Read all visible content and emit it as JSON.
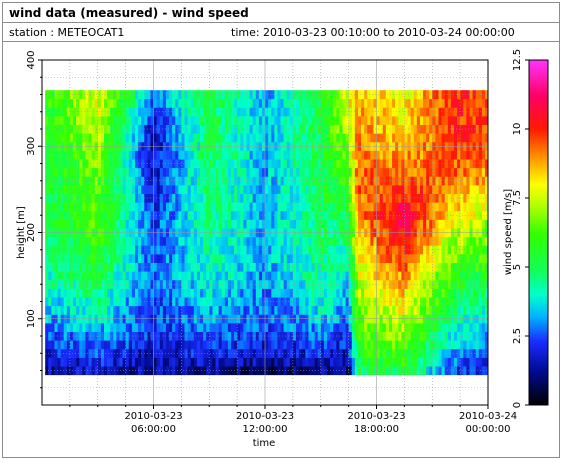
{
  "header": {
    "title": "wind data (measured) - wind speed",
    "station": "station : METEOCAT1",
    "time": "time: 2010-03-23 00:10:00 to 2010-03-24 00:00:00"
  },
  "colors": {
    "frame": "#8c8c8c",
    "grid": "#9c9c9c",
    "missing": "#ffffff"
  },
  "chart_data": {
    "type": "heatmap",
    "title": "wind data (measured) - wind speed",
    "xlabel": "time",
    "ylabel": "height [m]",
    "colorbar_label": "wind speed [m/s]",
    "x_range_hours": [
      0.17,
      24
    ],
    "ylim": [
      0,
      400
    ],
    "clim": [
      0,
      12.5
    ],
    "x_ticks": [
      {
        "hour": 6,
        "line1": "2010-03-23",
        "line2": "06:00:00"
      },
      {
        "hour": 12,
        "line1": "2010-03-23",
        "line2": "12:00:00"
      },
      {
        "hour": 18,
        "line1": "2010-03-23",
        "line2": "18:00:00"
      },
      {
        "hour": 24,
        "line1": "2010-03-24",
        "line2": "00:00:00"
      }
    ],
    "y_ticks": [
      100,
      200,
      300,
      400
    ],
    "cbar_ticks": [
      "0",
      "2.5",
      "5",
      "7.5",
      "10",
      "12.5"
    ],
    "grid": true,
    "height_levels_m": [
      40,
      50,
      60,
      70,
      80,
      90,
      100,
      110,
      120,
      130,
      140,
      150,
      160,
      170,
      180,
      190,
      200,
      210,
      220,
      230,
      240,
      250,
      260,
      270,
      280,
      290,
      300,
      310,
      320,
      330,
      340,
      350,
      360
    ],
    "speed_profiles_ms": [
      {
        "hour": 0.5,
        "speeds": [
          1.5,
          1.8,
          2.0,
          2.3,
          2.6,
          2.9,
          3.2,
          3.5,
          3.7,
          3.9,
          4.1,
          4.3,
          4.5,
          4.6,
          4.7,
          4.8,
          4.9,
          5.0,
          5.1,
          5.2,
          5.2,
          5.3,
          5.3,
          5.4,
          5.4,
          5.5,
          5.5,
          5.6,
          5.6,
          5.7,
          5.7,
          5.8,
          5.8
        ]
      },
      {
        "hour": 3.0,
        "speeds": [
          1.6,
          2.0,
          2.4,
          2.8,
          3.1,
          3.4,
          3.7,
          4.0,
          4.3,
          4.6,
          4.9,
          5.2,
          5.5,
          5.7,
          5.9,
          6.0,
          6.1,
          6.2,
          6.3,
          6.3,
          6.4,
          6.4,
          6.5,
          6.6,
          6.7,
          6.8,
          7.0,
          7.2,
          7.3,
          7.5,
          7.6,
          7.7,
          7.8
        ]
      },
      {
        "hour": 6.0,
        "speeds": [
          1.2,
          1.4,
          1.6,
          1.8,
          2.0,
          2.1,
          2.2,
          2.3,
          2.4,
          2.4,
          2.5,
          2.5,
          2.5,
          2.5,
          2.5,
          2.4,
          2.4,
          2.3,
          2.2,
          2.1,
          2.0,
          1.9,
          1.8,
          1.7,
          1.6,
          1.5,
          1.4,
          1.5,
          1.7,
          2.0,
          2.3,
          2.6,
          2.9
        ]
      },
      {
        "hour": 9.0,
        "speeds": [
          1.3,
          1.6,
          2.0,
          2.3,
          2.6,
          2.9,
          3.1,
          3.3,
          3.5,
          3.7,
          3.9,
          4.0,
          4.1,
          4.2,
          4.3,
          4.4,
          4.5,
          4.6,
          4.6,
          4.7,
          4.7,
          4.8,
          4.8,
          4.9,
          4.9,
          5.0,
          5.0,
          5.1,
          5.1,
          5.2,
          5.2,
          5.3,
          5.3
        ]
      },
      {
        "hour": 12.0,
        "speeds": [
          1.0,
          1.3,
          1.6,
          1.9,
          2.2,
          2.4,
          2.6,
          2.7,
          2.8,
          2.9,
          3.0,
          3.0,
          3.1,
          3.1,
          3.1,
          3.2,
          3.2,
          3.2,
          3.2,
          3.2,
          3.2,
          3.2,
          3.2,
          3.2,
          3.2,
          3.2,
          3.2,
          3.2,
          3.2,
          3.2,
          3.2,
          3.2,
          3.2
        ]
      },
      {
        "hour": 15.0,
        "speeds": [
          1.2,
          1.6,
          2.0,
          2.4,
          2.8,
          3.1,
          3.4,
          3.7,
          3.9,
          4.1,
          4.3,
          4.4,
          4.5,
          4.6,
          4.7,
          4.8,
          4.8,
          4.9,
          4.9,
          5.0,
          5.0,
          5.0,
          5.1,
          5.1,
          5.1,
          5.2,
          5.2,
          5.2,
          5.3,
          5.3,
          5.3,
          5.3,
          5.4
        ]
      },
      {
        "hour": 16.5,
        "speeds": [
          1.0,
          1.3,
          1.6,
          1.9,
          2.2,
          2.5,
          2.8,
          3.0,
          3.2,
          3.4,
          3.6,
          3.8,
          4.0,
          4.2,
          4.4,
          4.6,
          4.8,
          5.0,
          5.2,
          5.4,
          5.6,
          5.8,
          6.0,
          6.2,
          6.4,
          6.6,
          6.8,
          7.0,
          7.2,
          7.4,
          7.6,
          7.8,
          8.0
        ]
      },
      {
        "hour": 17.0,
        "speeds": [
          5.0,
          5.3,
          5.6,
          5.9,
          6.2,
          6.4,
          6.6,
          6.8,
          7.0,
          7.2,
          7.4,
          7.6,
          7.8,
          8.0,
          8.2,
          8.4,
          8.6,
          8.8,
          9.0,
          9.1,
          9.2,
          9.3,
          9.3,
          9.4,
          9.4,
          9.3,
          9.2,
          9.1,
          9.0,
          8.9,
          8.8,
          8.7,
          8.6
        ]
      },
      {
        "hour": 19.5,
        "speeds": [
          5.3,
          5.7,
          6.1,
          6.5,
          6.9,
          7.2,
          7.5,
          7.8,
          8.1,
          8.4,
          8.7,
          9.0,
          9.3,
          9.6,
          9.9,
          10.2,
          10.5,
          10.7,
          10.8,
          10.6,
          10.3,
          10.0,
          9.6,
          9.3,
          9.0,
          8.8,
          8.6,
          8.4,
          8.3,
          8.2,
          8.1,
          8.0,
          7.9
        ]
      },
      {
        "hour": 22.0,
        "speeds": [
          2.5,
          2.9,
          3.3,
          3.6,
          3.9,
          4.2,
          4.5,
          4.8,
          5.1,
          5.4,
          5.7,
          6.0,
          6.3,
          6.6,
          6.9,
          7.2,
          7.5,
          7.8,
          8.1,
          8.4,
          8.7,
          9.0,
          9.2,
          9.4,
          9.5,
          9.6,
          9.7,
          9.8,
          9.9,
          9.9,
          10.0,
          10.0,
          10.0
        ]
      },
      {
        "hour": 24.0,
        "speeds": [
          2.0,
          2.3,
          2.6,
          2.9,
          3.2,
          3.5,
          3.8,
          4.1,
          4.4,
          4.7,
          5.0,
          5.3,
          5.6,
          5.9,
          6.2,
          6.5,
          6.8,
          7.1,
          7.4,
          7.7,
          8.0,
          8.3,
          8.6,
          8.9,
          9.2,
          9.4,
          9.6,
          9.7,
          9.8,
          9.8,
          9.8,
          9.7,
          9.6
        ]
      }
    ],
    "colormap": [
      {
        "value": 0,
        "color": "#000000"
      },
      {
        "value": 1.2,
        "color": "#000a8f"
      },
      {
        "value": 2.3,
        "color": "#1a2cff"
      },
      {
        "value": 3.2,
        "color": "#00b3ff"
      },
      {
        "value": 4.0,
        "color": "#00ffcc"
      },
      {
        "value": 4.9,
        "color": "#11ff55"
      },
      {
        "value": 6.2,
        "color": "#33ff00"
      },
      {
        "value": 7.3,
        "color": "#bbff00"
      },
      {
        "value": 8.0,
        "color": "#ffff00"
      },
      {
        "value": 8.8,
        "color": "#ffa600"
      },
      {
        "value": 10.0,
        "color": "#ff1a00"
      },
      {
        "value": 11.2,
        "color": "#ff0066"
      },
      {
        "value": 12.5,
        "color": "#ff33ff"
      }
    ]
  }
}
